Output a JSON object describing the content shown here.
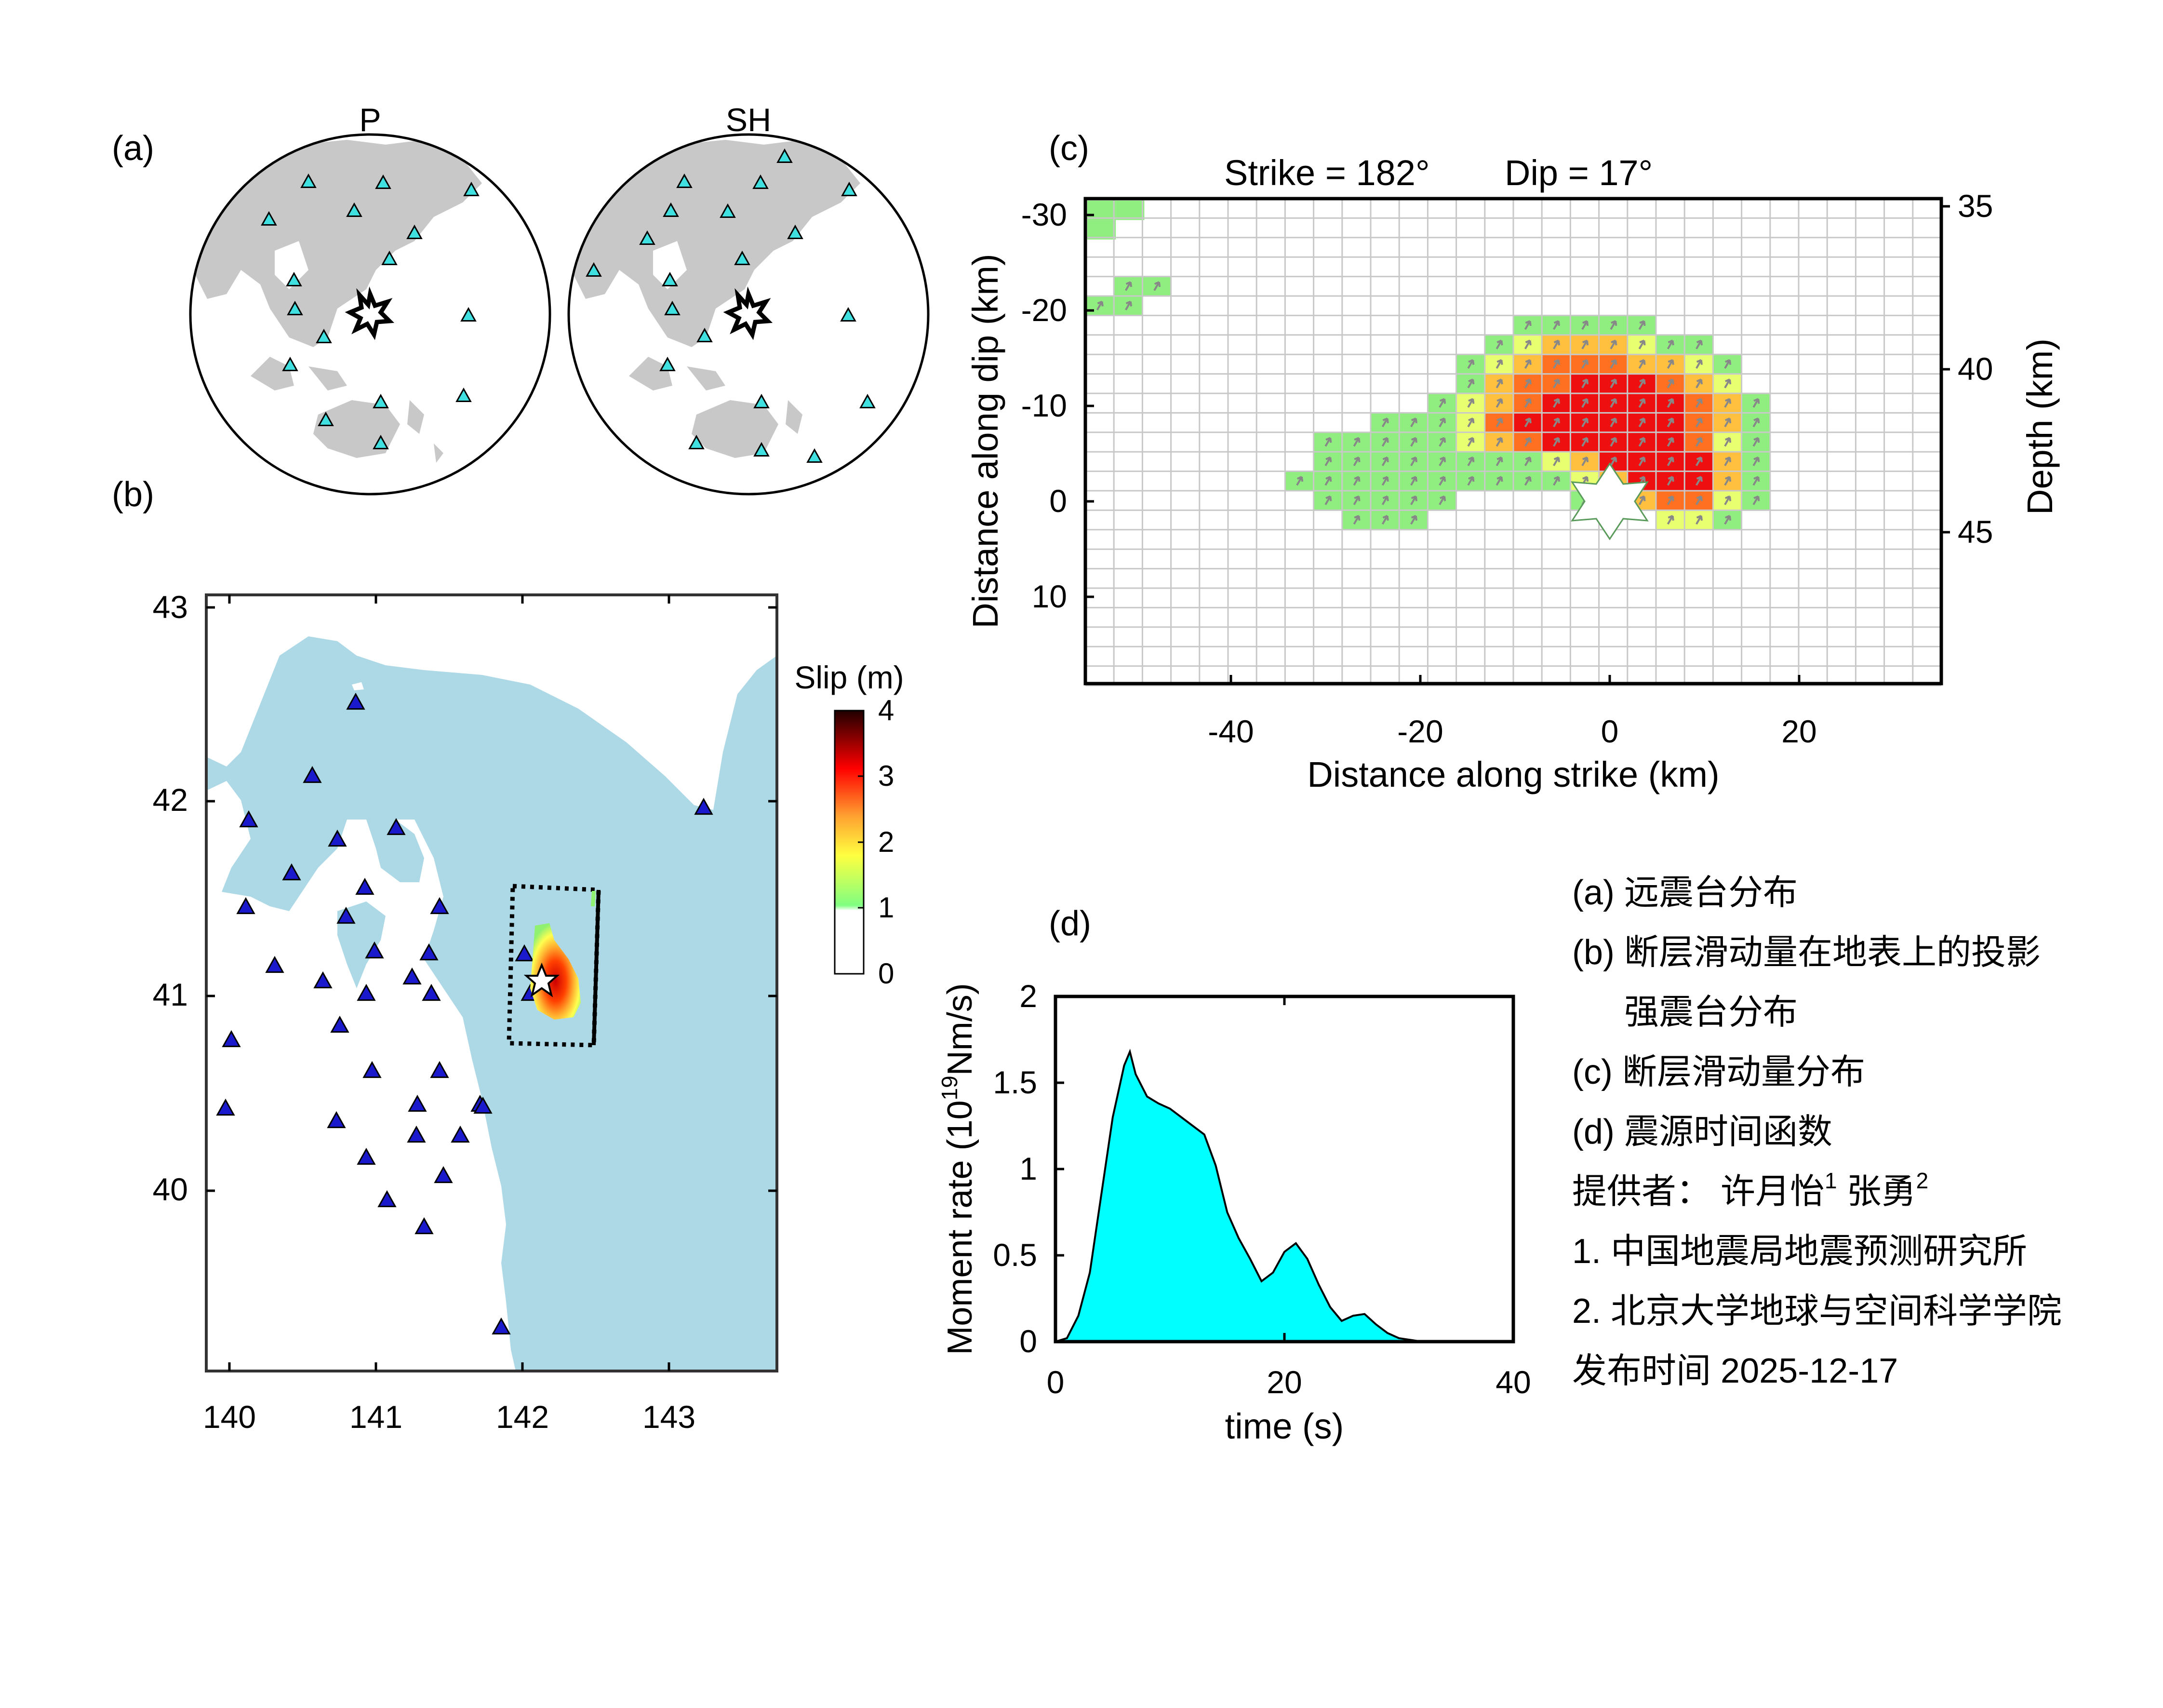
{
  "panel_labels": {
    "a": "(a)",
    "b": "(b)",
    "c": "(c)",
    "d": "(d)"
  },
  "panel_a": {
    "p_title": "P",
    "sh_title": "SH"
  },
  "panel_b": {
    "colorbar_title": "Slip (m)",
    "colorbar_ticks": [
      "4",
      "3",
      "2",
      "1",
      "0"
    ],
    "lat_ticks": [
      "43",
      "42",
      "41",
      "40"
    ],
    "lon_ticks": [
      "140",
      "141",
      "142",
      "143"
    ],
    "colors": {
      "sea": "#add8e6",
      "land": "#ffffff",
      "station": "#1a1acc"
    }
  },
  "panel_c": {
    "title_strike": "Strike = 182°",
    "title_dip": "Dip = 17°",
    "ylabel": "Distance along dip (km)",
    "xlabel": "Distance along strike (km)",
    "ylabel_right": "Depth (km)",
    "x_ticks": [
      "-40",
      "-20",
      "0",
      "20"
    ],
    "y_ticks": [
      "-30",
      "-20",
      "-10",
      "0",
      "10"
    ],
    "depth_ticks": [
      "35",
      "40",
      "45"
    ]
  },
  "chart_data": {
    "type": "area",
    "title": "",
    "xlabel": "time (s)",
    "ylabel": "Moment rate (10^19 Nm/s)",
    "xlim": [
      0,
      40
    ],
    "ylim": [
      0,
      2
    ],
    "x_ticks": [
      "0",
      "20",
      "40"
    ],
    "y_ticks": [
      "0",
      "0.5",
      "1",
      "1.5",
      "2"
    ],
    "fill_color": "#00ffff",
    "x": [
      0,
      1,
      2,
      3,
      4,
      5,
      6,
      6.5,
      7,
      8,
      9,
      10,
      11,
      12,
      13,
      14,
      15,
      16,
      17,
      18,
      19,
      20,
      21,
      22,
      23,
      24,
      25,
      26,
      27,
      28,
      29,
      30,
      31,
      32
    ],
    "y": [
      0,
      0.02,
      0.15,
      0.4,
      0.85,
      1.3,
      1.6,
      1.68,
      1.55,
      1.42,
      1.38,
      1.35,
      1.3,
      1.25,
      1.2,
      1.02,
      0.75,
      0.6,
      0.48,
      0.35,
      0.4,
      0.52,
      0.57,
      0.48,
      0.33,
      0.2,
      0.12,
      0.15,
      0.16,
      0.1,
      0.05,
      0.02,
      0.01,
      0
    ]
  },
  "legend": {
    "line_a_tag": "(a)",
    "line_a_text": "远震台分布",
    "line_b_tag": "(b)",
    "line_b_text": "断层滑动量在地表上的投影",
    "line_b2_text": "强震台分布",
    "line_c_tag": "(c)",
    "line_c_text": "断层滑动量分布",
    "line_d_tag": "(d)",
    "line_d_text": "震源时间函数",
    "provider_label": "提供者：",
    "author1": "许月怡",
    "author1_sup": "1",
    "author2": "张勇",
    "author2_sup": "2",
    "affil1": "1. 中国地震局地震预测研究所",
    "affil2": "2. 北京大学地球与空间科学学院",
    "date_label": "发布时间",
    "date_value": "2025-12-17"
  }
}
